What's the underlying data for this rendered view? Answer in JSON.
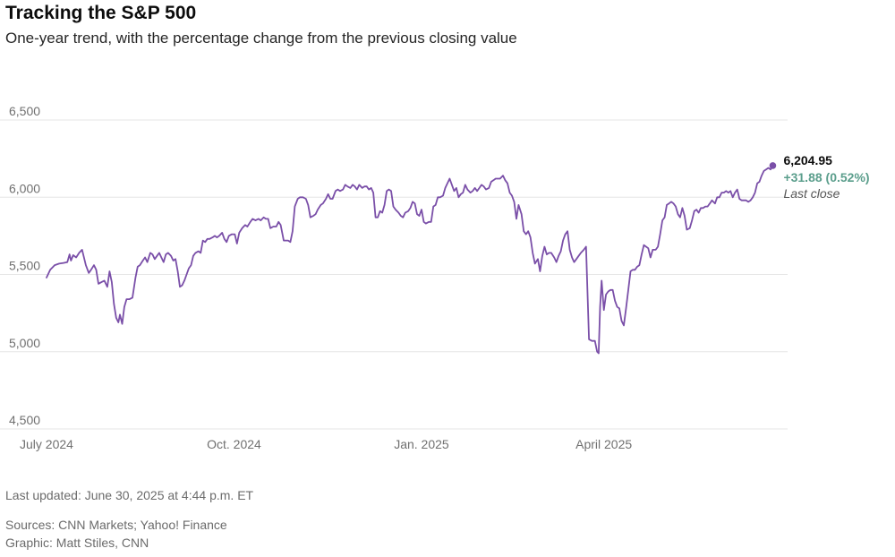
{
  "header": {
    "title": "Tracking the S&P 500",
    "subtitle": "One-year trend, with the percentage change from the previous closing value"
  },
  "footer": {
    "updated": "Last updated: June 30, 2025 at 4:44 p.m. ET",
    "sources": "Sources: CNN Markets; Yahoo! Finance",
    "graphic": "Graphic: Matt Stiles, CNN"
  },
  "colors": {
    "line": "#7a4fa8",
    "change": "#5b9e8c",
    "grid": "#e6e6e6",
    "tick": "#707070"
  },
  "chart_data": {
    "type": "line",
    "title": "Tracking the S&P 500",
    "xlabel": "",
    "ylabel": "",
    "ylim": [
      4500,
      6500
    ],
    "xlim": [
      0,
      100
    ],
    "yticks": [
      4500,
      5000,
      5500,
      6000,
      6500
    ],
    "ytick_labels": [
      "4,500",
      "5,000",
      "5,500",
      "6,000",
      "6,500"
    ],
    "xticks": [
      {
        "x": 0,
        "label": "July 2024"
      },
      {
        "x": 25.3,
        "label": "Oct. 2024"
      },
      {
        "x": 50.6,
        "label": "Jan. 2025"
      },
      {
        "x": 75.2,
        "label": "April 2025"
      }
    ],
    "grid": true,
    "annotation": {
      "value_label": "6,204.95",
      "change_label": "+31.88 (0.52%)",
      "note": "Last close"
    },
    "series": [
      {
        "name": "S&P 500",
        "points": [
          [
            0,
            5480
          ],
          [
            0.5,
            5530
          ],
          [
            1.1,
            5560
          ],
          [
            1.7,
            5570
          ],
          [
            2.3,
            5575
          ],
          [
            2.8,
            5580
          ],
          [
            3.1,
            5630
          ],
          [
            3.3,
            5590
          ],
          [
            3.6,
            5625
          ],
          [
            4.0,
            5610
          ],
          [
            4.4,
            5640
          ],
          [
            4.8,
            5660
          ],
          [
            5.0,
            5620
          ],
          [
            5.3,
            5560
          ],
          [
            5.7,
            5510
          ],
          [
            6.0,
            5530
          ],
          [
            6.4,
            5560
          ],
          [
            6.7,
            5530
          ],
          [
            7.0,
            5440
          ],
          [
            7.4,
            5450
          ],
          [
            7.8,
            5460
          ],
          [
            8.2,
            5420
          ],
          [
            8.5,
            5520
          ],
          [
            8.8,
            5450
          ],
          [
            9.1,
            5310
          ],
          [
            9.4,
            5220
          ],
          [
            9.7,
            5190
          ],
          [
            9.9,
            5240
          ],
          [
            10.2,
            5180
          ],
          [
            10.5,
            5290
          ],
          [
            10.8,
            5340
          ],
          [
            11.2,
            5340
          ],
          [
            11.6,
            5350
          ],
          [
            12.0,
            5480
          ],
          [
            12.3,
            5550
          ],
          [
            12.6,
            5560
          ],
          [
            13.0,
            5590
          ],
          [
            13.3,
            5610
          ],
          [
            13.6,
            5580
          ],
          [
            14.0,
            5640
          ],
          [
            14.3,
            5630
          ],
          [
            14.6,
            5600
          ],
          [
            14.9,
            5620
          ],
          [
            15.2,
            5640
          ],
          [
            15.5,
            5610
          ],
          [
            15.8,
            5580
          ],
          [
            16.1,
            5630
          ],
          [
            16.4,
            5640
          ],
          [
            16.8,
            5620
          ],
          [
            17.1,
            5590
          ],
          [
            17.4,
            5600
          ],
          [
            17.7,
            5520
          ],
          [
            18.0,
            5420
          ],
          [
            18.3,
            5430
          ],
          [
            18.6,
            5460
          ],
          [
            18.9,
            5500
          ],
          [
            19.2,
            5540
          ],
          [
            19.5,
            5560
          ],
          [
            19.8,
            5620
          ],
          [
            20.1,
            5640
          ],
          [
            20.5,
            5650
          ],
          [
            20.8,
            5640
          ],
          [
            21.1,
            5720
          ],
          [
            21.4,
            5710
          ],
          [
            21.7,
            5730
          ],
          [
            22.0,
            5730
          ],
          [
            22.4,
            5740
          ],
          [
            22.7,
            5750
          ],
          [
            23.0,
            5740
          ],
          [
            23.3,
            5750
          ],
          [
            23.7,
            5770
          ],
          [
            24.0,
            5730
          ],
          [
            24.3,
            5710
          ],
          [
            24.6,
            5750
          ],
          [
            25.0,
            5760
          ],
          [
            25.4,
            5760
          ],
          [
            25.7,
            5700
          ],
          [
            26.0,
            5770
          ],
          [
            26.4,
            5800
          ],
          [
            26.8,
            5820
          ],
          [
            27.1,
            5810
          ],
          [
            27.5,
            5840
          ],
          [
            27.8,
            5860
          ],
          [
            28.2,
            5850
          ],
          [
            28.6,
            5860
          ],
          [
            28.9,
            5850
          ],
          [
            29.3,
            5870
          ],
          [
            29.6,
            5860
          ],
          [
            29.9,
            5860
          ],
          [
            30.2,
            5800
          ],
          [
            30.6,
            5810
          ],
          [
            31.0,
            5810
          ],
          [
            31.3,
            5840
          ],
          [
            31.6,
            5820
          ],
          [
            32.0,
            5720
          ],
          [
            32.3,
            5720
          ],
          [
            32.6,
            5720
          ],
          [
            32.9,
            5710
          ],
          [
            33.2,
            5780
          ],
          [
            33.5,
            5940
          ],
          [
            33.9,
            5990
          ],
          [
            34.2,
            6000
          ],
          [
            34.6,
            6000
          ],
          [
            35.0,
            5990
          ],
          [
            35.3,
            5950
          ],
          [
            35.6,
            5870
          ],
          [
            36.0,
            5880
          ],
          [
            36.3,
            5890
          ],
          [
            36.6,
            5920
          ],
          [
            37.0,
            5950
          ],
          [
            37.3,
            5960
          ],
          [
            37.7,
            5990
          ],
          [
            38.0,
            6020
          ],
          [
            38.3,
            5990
          ],
          [
            38.6,
            5990
          ],
          [
            39.0,
            6040
          ],
          [
            39.3,
            6050
          ],
          [
            39.6,
            6040
          ],
          [
            40.0,
            6050
          ],
          [
            40.3,
            6080
          ],
          [
            40.6,
            6070
          ],
          [
            41.0,
            6060
          ],
          [
            41.3,
            6080
          ],
          [
            41.6,
            6070
          ],
          [
            41.9,
            6050
          ],
          [
            42.2,
            6080
          ],
          [
            42.6,
            6060
          ],
          [
            42.9,
            6070
          ],
          [
            43.2,
            6070
          ],
          [
            43.5,
            6050
          ],
          [
            43.8,
            6060
          ],
          [
            44.1,
            6030
          ],
          [
            44.4,
            5870
          ],
          [
            44.7,
            5870
          ],
          [
            45.0,
            5910
          ],
          [
            45.3,
            5900
          ],
          [
            45.6,
            5950
          ],
          [
            45.9,
            6040
          ],
          [
            46.2,
            6050
          ],
          [
            46.5,
            6040
          ],
          [
            46.8,
            5940
          ],
          [
            47.1,
            5920
          ],
          [
            47.5,
            5900
          ],
          [
            47.8,
            5880
          ],
          [
            48.1,
            5870
          ],
          [
            48.4,
            5900
          ],
          [
            48.8,
            5910
          ],
          [
            49.1,
            5930
          ],
          [
            49.4,
            5970
          ],
          [
            49.7,
            5960
          ],
          [
            50.0,
            5890
          ],
          [
            50.3,
            5880
          ],
          [
            50.6,
            5920
          ],
          [
            50.9,
            5840
          ],
          [
            51.2,
            5830
          ],
          [
            51.6,
            5840
          ],
          [
            51.9,
            5840
          ],
          [
            52.2,
            5940
          ],
          [
            52.5,
            5950
          ],
          [
            52.8,
            6000
          ],
          [
            53.1,
            6000
          ],
          [
            53.5,
            6010
          ],
          [
            53.8,
            6060
          ],
          [
            54.1,
            6090
          ],
          [
            54.4,
            6120
          ],
          [
            54.7,
            6080
          ],
          [
            55.0,
            6040
          ],
          [
            55.3,
            6060
          ],
          [
            55.6,
            6000
          ],
          [
            55.9,
            6020
          ],
          [
            56.2,
            6030
          ],
          [
            56.5,
            6080
          ],
          [
            56.8,
            6050
          ],
          [
            57.2,
            6030
          ],
          [
            57.5,
            6040
          ],
          [
            57.8,
            6060
          ],
          [
            58.1,
            6040
          ],
          [
            58.4,
            6060
          ],
          [
            58.7,
            6080
          ],
          [
            59.0,
            6070
          ],
          [
            59.3,
            6050
          ],
          [
            59.7,
            6060
          ],
          [
            60.0,
            6100
          ],
          [
            60.3,
            6110
          ],
          [
            60.6,
            6120
          ],
          [
            60.9,
            6120
          ],
          [
            61.2,
            6120
          ],
          [
            61.6,
            6140
          ],
          [
            61.9,
            6110
          ],
          [
            62.2,
            6090
          ],
          [
            62.5,
            6030
          ],
          [
            62.8,
            6010
          ],
          [
            63.1,
            5970
          ],
          [
            63.4,
            5860
          ],
          [
            63.7,
            5950
          ],
          [
            64.1,
            5890
          ],
          [
            64.4,
            5780
          ],
          [
            64.7,
            5760
          ],
          [
            65.0,
            5780
          ],
          [
            65.3,
            5740
          ],
          [
            65.6,
            5640
          ],
          [
            65.9,
            5570
          ],
          [
            66.3,
            5600
          ],
          [
            66.6,
            5520
          ],
          [
            66.9,
            5620
          ],
          [
            67.2,
            5680
          ],
          [
            67.5,
            5630
          ],
          [
            67.8,
            5640
          ],
          [
            68.1,
            5640
          ],
          [
            68.5,
            5610
          ],
          [
            68.8,
            5580
          ],
          [
            69.1,
            5620
          ],
          [
            69.4,
            5650
          ],
          [
            69.7,
            5720
          ],
          [
            70.0,
            5760
          ],
          [
            70.3,
            5780
          ],
          [
            70.6,
            5660
          ],
          [
            70.9,
            5610
          ],
          [
            71.2,
            5580
          ],
          [
            71.5,
            5600
          ],
          [
            71.8,
            5620
          ],
          [
            72.1,
            5640
          ],
          [
            72.5,
            5660
          ],
          [
            72.8,
            5680
          ],
          [
            73.0,
            5390
          ],
          [
            73.2,
            5080
          ],
          [
            73.6,
            5070
          ],
          [
            74.0,
            5070
          ],
          [
            74.3,
            5000
          ],
          [
            74.5,
            4990
          ],
          [
            74.7,
            5290
          ],
          [
            74.9,
            5460
          ],
          [
            75.2,
            5270
          ],
          [
            75.5,
            5370
          ],
          [
            75.8,
            5390
          ],
          [
            76.1,
            5400
          ],
          [
            76.4,
            5400
          ],
          [
            76.7,
            5330
          ],
          [
            77.0,
            5290
          ],
          [
            77.3,
            5280
          ],
          [
            77.6,
            5200
          ],
          [
            77.9,
            5170
          ],
          [
            78.2,
            5280
          ],
          [
            78.5,
            5400
          ],
          [
            78.8,
            5520
          ],
          [
            79.1,
            5530
          ],
          [
            79.4,
            5530
          ],
          [
            79.7,
            5550
          ],
          [
            80.0,
            5560
          ],
          [
            80.3,
            5630
          ],
          [
            80.6,
            5690
          ],
          [
            80.9,
            5680
          ],
          [
            81.2,
            5670
          ],
          [
            81.5,
            5610
          ],
          [
            81.8,
            5660
          ],
          [
            82.2,
            5660
          ],
          [
            82.5,
            5680
          ],
          [
            82.8,
            5760
          ],
          [
            83.1,
            5850
          ],
          [
            83.4,
            5870
          ],
          [
            83.7,
            5950
          ],
          [
            84.0,
            5960
          ],
          [
            84.3,
            5970
          ],
          [
            84.6,
            5960
          ],
          [
            84.9,
            5940
          ],
          [
            85.2,
            5890
          ],
          [
            85.5,
            5870
          ],
          [
            85.8,
            5930
          ],
          [
            86.1,
            5880
          ],
          [
            86.4,
            5790
          ],
          [
            86.8,
            5800
          ],
          [
            87.1,
            5850
          ],
          [
            87.4,
            5910
          ],
          [
            87.7,
            5920
          ],
          [
            88.0,
            5900
          ],
          [
            88.3,
            5930
          ],
          [
            88.6,
            5930
          ],
          [
            88.9,
            5940
          ],
          [
            89.2,
            5940
          ],
          [
            89.5,
            5960
          ],
          [
            89.8,
            5980
          ],
          [
            90.2,
            5960
          ],
          [
            90.5,
            6000
          ],
          [
            90.8,
            6000
          ],
          [
            91.1,
            6030
          ],
          [
            91.4,
            6030
          ],
          [
            91.7,
            6040
          ],
          [
            92.0,
            6030
          ],
          [
            92.3,
            6040
          ],
          [
            92.6,
            6000
          ],
          [
            92.9,
            6030
          ],
          [
            93.2,
            6050
          ],
          [
            93.5,
            5990
          ],
          [
            93.8,
            5980
          ],
          [
            94.1,
            5980
          ],
          [
            94.4,
            5980
          ],
          [
            94.7,
            5970
          ],
          [
            95.0,
            5980
          ],
          [
            95.3,
            6000
          ],
          [
            95.6,
            6030
          ],
          [
            95.9,
            6090
          ],
          [
            96.2,
            6100
          ],
          [
            96.5,
            6140
          ],
          [
            96.8,
            6170
          ],
          [
            97.1,
            6180
          ],
          [
            97.4,
            6190
          ],
          [
            97.7,
            6180
          ],
          [
            98.0,
            6204.95
          ]
        ]
      }
    ]
  }
}
